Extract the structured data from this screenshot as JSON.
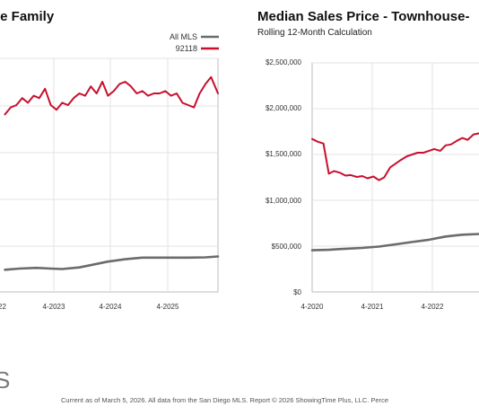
{
  "colors": {
    "all_mls": "#6b6b6b",
    "zip": "#c8102e",
    "grid": "#e3e3e3",
    "axis": "#bdbdbd"
  },
  "footer_text": "Current as of March 5, 2026. All data from the San Diego MLS. Report © 2026 ShowingTime Plus, LLC. Perce",
  "logo_text": "S",
  "chart_data": [
    {
      "type": "line",
      "title": "le Family",
      "subtitle": "",
      "x_tick_labels": [
        "22",
        "4-2023",
        "4-2024",
        "4-2025"
      ],
      "y_tick_labels": [],
      "grid": true,
      "legend": "top-right",
      "legend_entries": [
        "All MLS",
        "92118"
      ],
      "series": [
        {
          "name": "All MLS",
          "color": "#6b6b6b",
          "points": [
            [
              2022.2,
              0.095
            ],
            [
              2022.45,
              0.1
            ],
            [
              2022.75,
              0.103
            ],
            [
              2023.0,
              0.1
            ],
            [
              2023.2,
              0.098
            ],
            [
              2023.5,
              0.105
            ],
            [
              2023.8,
              0.12
            ],
            [
              2024.0,
              0.13
            ],
            [
              2024.3,
              0.14
            ],
            [
              2024.6,
              0.147
            ],
            [
              2025.0,
              0.147
            ],
            [
              2025.4,
              0.147
            ],
            [
              2025.7,
              0.148
            ],
            [
              2025.92,
              0.152
            ]
          ]
        },
        {
          "name": "92118",
          "color": "#c8102e",
          "points": [
            [
              2022.2,
              0.76
            ],
            [
              2022.3,
              0.79
            ],
            [
              2022.4,
              0.8
            ],
            [
              2022.5,
              0.83
            ],
            [
              2022.6,
              0.81
            ],
            [
              2022.7,
              0.84
            ],
            [
              2022.8,
              0.83
            ],
            [
              2022.9,
              0.87
            ],
            [
              2023.0,
              0.8
            ],
            [
              2023.1,
              0.78
            ],
            [
              2023.2,
              0.81
            ],
            [
              2023.3,
              0.8
            ],
            [
              2023.4,
              0.83
            ],
            [
              2023.5,
              0.85
            ],
            [
              2023.6,
              0.84
            ],
            [
              2023.7,
              0.88
            ],
            [
              2023.8,
              0.85
            ],
            [
              2023.9,
              0.9
            ],
            [
              2024.0,
              0.84
            ],
            [
              2024.1,
              0.86
            ],
            [
              2024.2,
              0.89
            ],
            [
              2024.3,
              0.9
            ],
            [
              2024.4,
              0.88
            ],
            [
              2024.5,
              0.85
            ],
            [
              2024.6,
              0.86
            ],
            [
              2024.7,
              0.84
            ],
            [
              2024.8,
              0.85
            ],
            [
              2024.9,
              0.85
            ],
            [
              2025.0,
              0.86
            ],
            [
              2025.1,
              0.84
            ],
            [
              2025.2,
              0.85
            ],
            [
              2025.3,
              0.81
            ],
            [
              2025.4,
              0.8
            ],
            [
              2025.5,
              0.79
            ],
            [
              2025.6,
              0.85
            ],
            [
              2025.7,
              0.89
            ],
            [
              2025.8,
              0.92
            ],
            [
              2025.92,
              0.85
            ]
          ]
        }
      ],
      "xlim": [
        2021.8,
        2025.92
      ],
      "ylim": [
        0,
        1
      ]
    },
    {
      "type": "line",
      "title": "Median Sales Price - Townhouse-",
      "subtitle": "Rolling 12-Month Calculation",
      "x_tick_labels": [
        "4-2020",
        "4-2021",
        "4-2022"
      ],
      "y_ticks": [
        0,
        500000,
        1000000,
        1500000,
        2000000,
        2500000
      ],
      "y_tick_labels": [
        "$0",
        "$500,000",
        "$1,000,000",
        "$1,500,000",
        "$2,000,000",
        "$2,500,000"
      ],
      "grid": true,
      "legend": "",
      "series": [
        {
          "name": "All MLS",
          "color": "#6b6b6b",
          "points": [
            [
              2020.25,
              455000
            ],
            [
              2020.5,
              460000
            ],
            [
              2020.75,
              472000
            ],
            [
              2021.0,
              480000
            ],
            [
              2021.25,
              495000
            ],
            [
              2021.5,
              520000
            ],
            [
              2021.75,
              545000
            ],
            [
              2022.0,
              570000
            ],
            [
              2022.25,
              605000
            ],
            [
              2022.5,
              625000
            ],
            [
              2022.75,
              632000
            ],
            [
              2023.0,
              628000
            ],
            [
              2023.1,
              630000
            ]
          ]
        },
        {
          "name": "92118",
          "color": "#c8102e",
          "points": [
            [
              2020.25,
              1670000
            ],
            [
              2020.33,
              1640000
            ],
            [
              2020.42,
              1620000
            ],
            [
              2020.5,
              1290000
            ],
            [
              2020.58,
              1320000
            ],
            [
              2020.67,
              1300000
            ],
            [
              2020.75,
              1270000
            ],
            [
              2020.83,
              1275000
            ],
            [
              2020.92,
              1255000
            ],
            [
              2021.0,
              1265000
            ],
            [
              2021.08,
              1240000
            ],
            [
              2021.17,
              1260000
            ],
            [
              2021.25,
              1220000
            ],
            [
              2021.33,
              1250000
            ],
            [
              2021.42,
              1360000
            ],
            [
              2021.5,
              1400000
            ],
            [
              2021.58,
              1440000
            ],
            [
              2021.67,
              1480000
            ],
            [
              2021.75,
              1500000
            ],
            [
              2021.83,
              1520000
            ],
            [
              2021.92,
              1520000
            ],
            [
              2022.0,
              1540000
            ],
            [
              2022.08,
              1560000
            ],
            [
              2022.17,
              1540000
            ],
            [
              2022.25,
              1600000
            ],
            [
              2022.33,
              1610000
            ],
            [
              2022.42,
              1650000
            ],
            [
              2022.5,
              1680000
            ],
            [
              2022.58,
              1660000
            ],
            [
              2022.67,
              1720000
            ],
            [
              2022.75,
              1730000
            ],
            [
              2022.83,
              1700000
            ],
            [
              2022.92,
              1720000
            ],
            [
              2023.0,
              1700000
            ],
            [
              2023.1,
              1710000
            ]
          ]
        }
      ],
      "xlim": [
        2020.25,
        2023.1
      ],
      "ylim": [
        0,
        2500000
      ]
    }
  ]
}
